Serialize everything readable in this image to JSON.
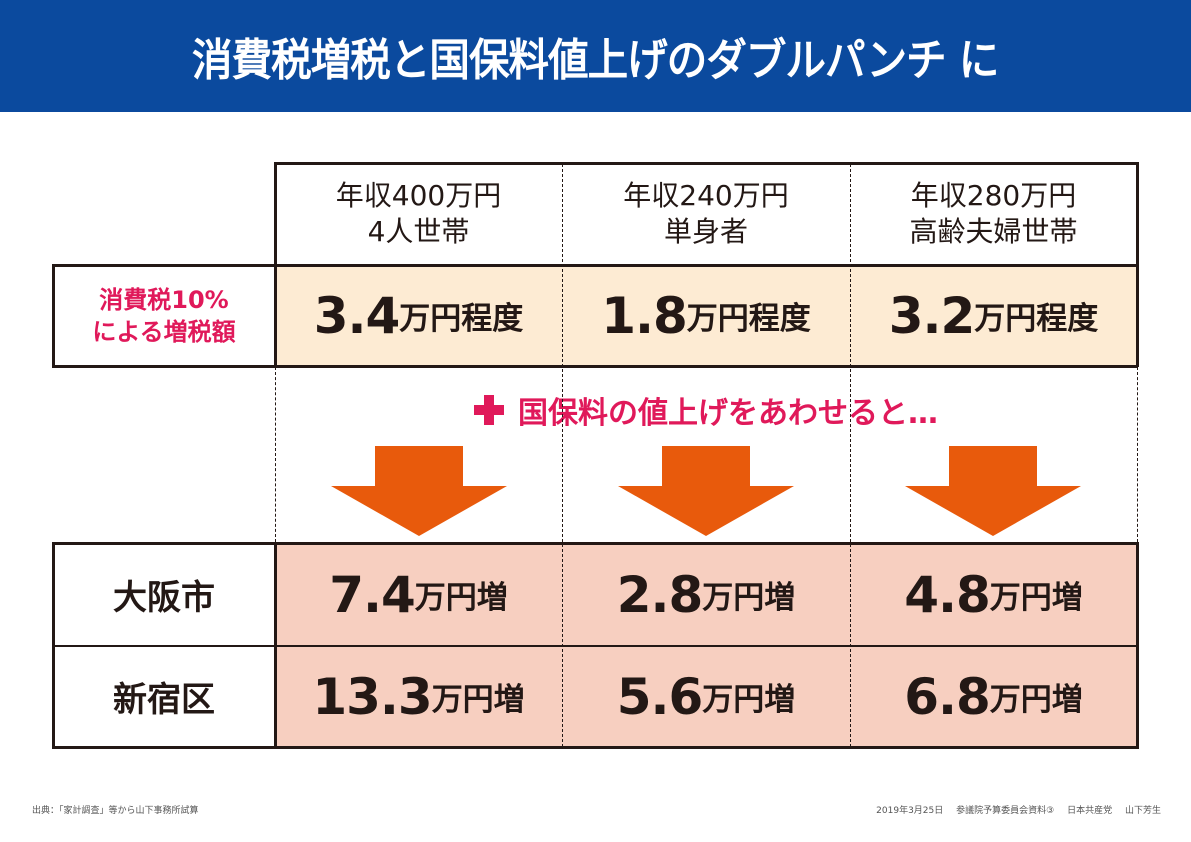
{
  "header": {
    "title": "消費税増税と国保料値上げのダブルパンチ に"
  },
  "columns": [
    {
      "line1": "年収400万円",
      "line2": "4人世帯"
    },
    {
      "line1": "年収240万円",
      "line2": "単身者"
    },
    {
      "line1": "年収280万円",
      "line2": "高齢夫婦世帯"
    }
  ],
  "tax_row": {
    "label_line1": "消費税10%",
    "label_line2": "による増税額",
    "values": [
      {
        "amount": "3.4",
        "unit": "万円程度"
      },
      {
        "amount": "1.8",
        "unit": "万円程度"
      },
      {
        "amount": "3.2",
        "unit": "万円程度"
      }
    ]
  },
  "middle": {
    "plus_text": "国保料の値上げをあわせると…",
    "icon": "plus-icon"
  },
  "city_rows": [
    {
      "label": "大阪市",
      "values": [
        {
          "amount": "7.4",
          "unit": "万円増"
        },
        {
          "amount": "2.8",
          "unit": "万円増"
        },
        {
          "amount": "4.8",
          "unit": "万円増"
        }
      ]
    },
    {
      "label": "新宿区",
      "values": [
        {
          "amount": "13.3",
          "unit": "万円増"
        },
        {
          "amount": "5.6",
          "unit": "万円増"
        },
        {
          "amount": "6.8",
          "unit": "万円増"
        }
      ]
    }
  ],
  "footer": {
    "source": "出典：「家計調査」等から山下事務所試算",
    "date": "2019年3月25日",
    "document": "参議院予算委員会資料③",
    "party": "日本共産党",
    "author": "山下芳生"
  },
  "colors": {
    "header_bg": "#0b4a9e",
    "accent_pink": "#e0195a",
    "tax_row_bg": "#fdebd3",
    "increase_row_bg": "#f7cfc0",
    "arrow_orange": "#e85a0c"
  }
}
